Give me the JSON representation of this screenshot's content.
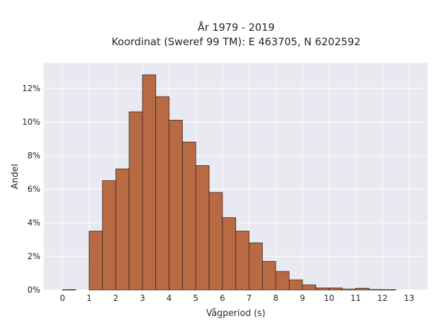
{
  "chart_data": {
    "type": "bar",
    "title": "År 1979 - 2019",
    "subtitle": "Koordinat (Sweref 99 TM): E 463705, N 6202592",
    "xlabel": "Vågperiod (s)",
    "ylabel": "Andel",
    "xlim": [
      -0.7,
      13.7
    ],
    "ylim": [
      0,
      0.135
    ],
    "x_ticks": [
      {
        "value": 0,
        "label": "0"
      },
      {
        "value": 1,
        "label": "1"
      },
      {
        "value": 2,
        "label": "2"
      },
      {
        "value": 3,
        "label": "3"
      },
      {
        "value": 4,
        "label": "4"
      },
      {
        "value": 5,
        "label": "5"
      },
      {
        "value": 6,
        "label": "6"
      },
      {
        "value": 7,
        "label": "7"
      },
      {
        "value": 8,
        "label": "8"
      },
      {
        "value": 9,
        "label": "9"
      },
      {
        "value": 10,
        "label": "10"
      },
      {
        "value": 11,
        "label": "11"
      },
      {
        "value": 12,
        "label": "12"
      },
      {
        "value": 13,
        "label": "13"
      }
    ],
    "y_ticks": [
      {
        "value": 0,
        "label": "0%"
      },
      {
        "value": 0.02,
        "label": "2%"
      },
      {
        "value": 0.04,
        "label": "4%"
      },
      {
        "value": 0.06,
        "label": "6%"
      },
      {
        "value": 0.08,
        "label": "8%"
      },
      {
        "value": 0.1,
        "label": "10%"
      },
      {
        "value": 0.12,
        "label": "12%"
      }
    ],
    "bin_width": 0.5,
    "bins": [
      {
        "x": 0.0,
        "value": 0.0002
      },
      {
        "x": 1.0,
        "value": 0.035
      },
      {
        "x": 1.5,
        "value": 0.065
      },
      {
        "x": 2.0,
        "value": 0.072
      },
      {
        "x": 2.5,
        "value": 0.106
      },
      {
        "x": 3.0,
        "value": 0.128
      },
      {
        "x": 3.5,
        "value": 0.115
      },
      {
        "x": 4.0,
        "value": 0.101
      },
      {
        "x": 4.5,
        "value": 0.088
      },
      {
        "x": 5.0,
        "value": 0.074
      },
      {
        "x": 5.5,
        "value": 0.058
      },
      {
        "x": 6.0,
        "value": 0.043
      },
      {
        "x": 6.5,
        "value": 0.035
      },
      {
        "x": 7.0,
        "value": 0.028
      },
      {
        "x": 7.5,
        "value": 0.017
      },
      {
        "x": 8.0,
        "value": 0.011
      },
      {
        "x": 8.5,
        "value": 0.006
      },
      {
        "x": 9.0,
        "value": 0.003
      },
      {
        "x": 9.5,
        "value": 0.0012
      },
      {
        "x": 10.0,
        "value": 0.0012
      },
      {
        "x": 10.5,
        "value": 0.0005
      },
      {
        "x": 11.0,
        "value": 0.001
      },
      {
        "x": 11.5,
        "value": 0.0003
      },
      {
        "x": 12.0,
        "value": 0.0002
      }
    ],
    "grid": true,
    "colors": {
      "bar_fill": "#b86a42",
      "bar_edge": "#3b2418",
      "plot_background": "#e9e9f2",
      "gridline": "#ffffff"
    }
  }
}
